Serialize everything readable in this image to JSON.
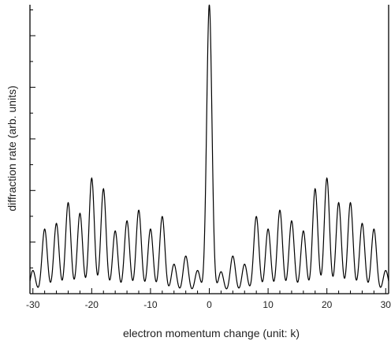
{
  "chart_data": {
    "type": "line",
    "title": "",
    "xlabel": "electron momentum change (unit: k)",
    "ylabel": "diffraction rate (arb. units)",
    "xlim": [
      -30.5,
      30.5
    ],
    "ylim": [
      0,
      4.6
    ],
    "xticks": [
      -30,
      -20,
      -10,
      0,
      10,
      20,
      30
    ],
    "xtick_labels": [
      "-30",
      "-20",
      "-10",
      "0",
      "10",
      "20",
      "30"
    ],
    "y_tick_labels_shown": false,
    "grid": false,
    "series": [
      {
        "color": "#000000",
        "peaks": [
          {
            "x": -30,
            "y": 0.37
          },
          {
            "x": -28,
            "y": 1.03
          },
          {
            "x": -26,
            "y": 1.12
          },
          {
            "x": -24,
            "y": 1.45
          },
          {
            "x": -22,
            "y": 1.28
          },
          {
            "x": -20,
            "y": 1.84
          },
          {
            "x": -18,
            "y": 1.67
          },
          {
            "x": -16,
            "y": 1.0
          },
          {
            "x": -14,
            "y": 1.16
          },
          {
            "x": -12,
            "y": 1.33
          },
          {
            "x": -10,
            "y": 1.03
          },
          {
            "x": -8,
            "y": 1.23
          },
          {
            "x": -6,
            "y": 0.47
          },
          {
            "x": -4,
            "y": 0.6
          },
          {
            "x": -2,
            "y": 0.37
          },
          {
            "x": 0,
            "y": 4.6
          },
          {
            "x": 2,
            "y": 0.35
          },
          {
            "x": 4,
            "y": 0.6
          },
          {
            "x": 6,
            "y": 0.47
          },
          {
            "x": 8,
            "y": 1.23
          },
          {
            "x": 10,
            "y": 1.03
          },
          {
            "x": 12,
            "y": 1.33
          },
          {
            "x": 14,
            "y": 1.16
          },
          {
            "x": 16,
            "y": 1.0
          },
          {
            "x": 18,
            "y": 1.67
          },
          {
            "x": 20,
            "y": 1.84
          },
          {
            "x": 22,
            "y": 1.45
          },
          {
            "x": 24,
            "y": 1.45
          },
          {
            "x": 26,
            "y": 1.12
          },
          {
            "x": 28,
            "y": 1.03
          },
          {
            "x": 30,
            "y": 0.37
          }
        ],
        "peak_width": 0.45
      }
    ]
  }
}
